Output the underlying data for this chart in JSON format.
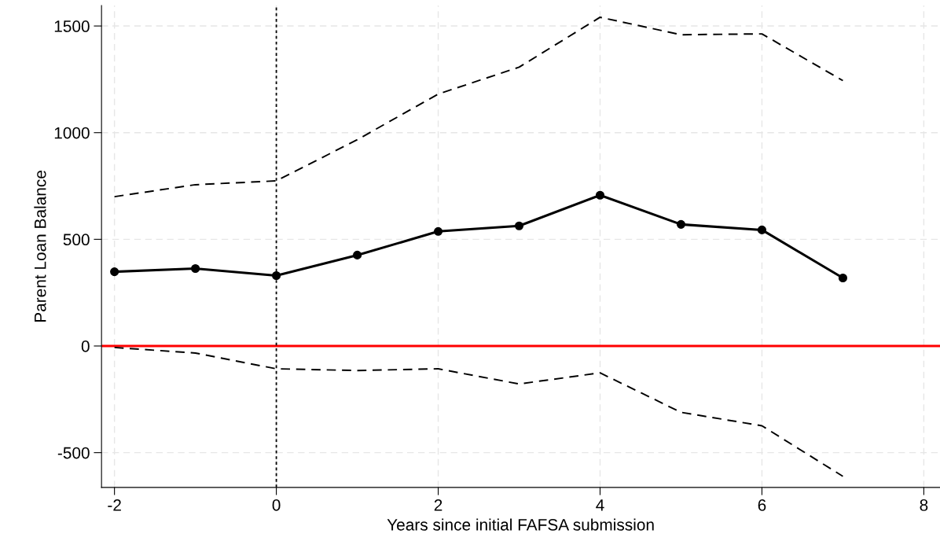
{
  "chart_data": {
    "type": "line",
    "xlabel": "Years since initial FAFSA submission",
    "ylabel": "Parent Loan Balance",
    "x": [
      -2,
      -1,
      0,
      1,
      2,
      3,
      4,
      5,
      6,
      7
    ],
    "series": [
      {
        "color": "#000000",
        "values": [
          348,
          363,
          330,
          426,
          537,
          563,
          707,
          570,
          544,
          319
        ],
        "marker": "circle",
        "line_style": "solid"
      },
      {
        "color": "#000000",
        "values": [
          700,
          756,
          774,
          967,
          1181,
          1307,
          1541,
          1459,
          1463,
          1244
        ],
        "marker": "none",
        "line_style": "dashed"
      },
      {
        "color": "#000000",
        "values": [
          -7,
          -33,
          -107,
          -115,
          -107,
          -178,
          -126,
          -311,
          -374,
          -611
        ],
        "marker": "none",
        "line_style": "dashed"
      }
    ],
    "xlim": [
      -2.16,
      8.2
    ],
    "ylim": [
      -663,
      1596
    ],
    "xticks": [
      -2,
      0,
      2,
      4,
      6,
      8
    ],
    "yticks": [
      -500,
      0,
      500,
      1000,
      1500
    ],
    "grid": true,
    "legend": false,
    "ref_lines": [
      {
        "axis": "y",
        "value": 0,
        "color": "#ff0000",
        "line_style": "solid"
      },
      {
        "axis": "x",
        "value": 0,
        "color": "#000000",
        "line_style": "dotted"
      }
    ]
  }
}
